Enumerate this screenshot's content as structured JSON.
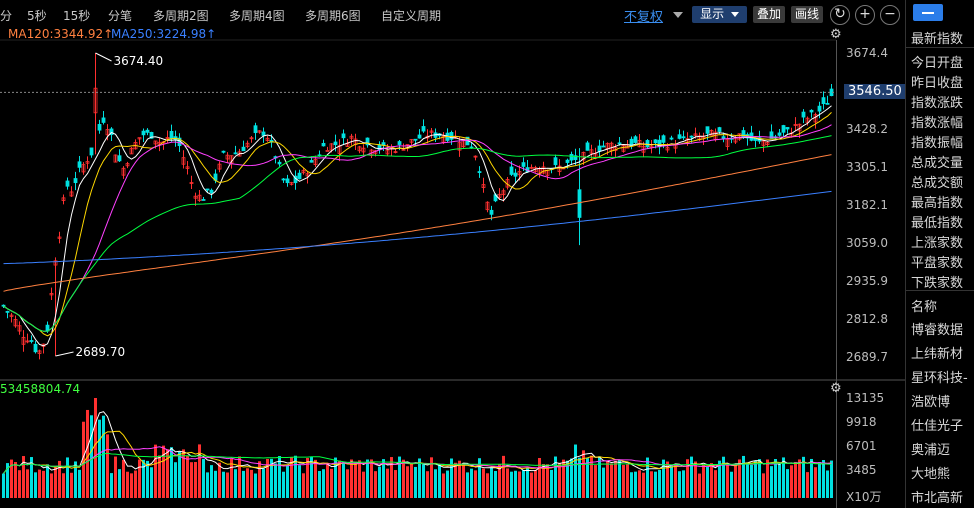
{
  "toolbar": {
    "periods": [
      "分",
      "5秒",
      "15秒",
      "分笔",
      "多周期2图",
      "多周期4图",
      "多周期6图",
      "自定义周期"
    ],
    "adjust": "不复权",
    "display": "显示",
    "overlay": "叠加",
    "draw": "画线",
    "refresh_icon": "refresh-icon",
    "zoom_in": "+",
    "zoom_out": "−"
  },
  "indicators": {
    "ma120": "MA120:3344.92↑",
    "ma250": "MA250:3224.98↑",
    "volume": "53458804.74"
  },
  "price_axis": {
    "ticks": [
      "3674.4",
      "3546.50",
      "3428.2",
      "3305.1",
      "3182.1",
      "3059.0",
      "2935.9",
      "2812.8",
      "2689.7"
    ],
    "current": "3546.50"
  },
  "volume_axis": {
    "ticks": [
      "13135",
      "9918",
      "6701",
      "3485"
    ],
    "unit": "X10万"
  },
  "annotations": {
    "high": "3674.40",
    "low": "2689.70"
  },
  "sidebar": {
    "items": [
      "最新指数",
      "今日开盘",
      "昨日收盘",
      "指数涨跌",
      "指数涨幅",
      "指数振幅",
      "总成交量",
      "总成交额",
      "最高指数",
      "最低指数",
      "上涨家数",
      "平盘家数",
      "下跌家数"
    ],
    "list_header": "名称",
    "stocks": [
      "博睿数据",
      "上纬新材",
      "星环科技-",
      "浩欧博",
      "仕佳光子",
      "奥浦迈",
      "大地熊",
      "市北高新"
    ]
  },
  "chart_data": {
    "type": "candlestick",
    "y_range": [
      2689.7,
      3674.4
    ],
    "high": 3674.4,
    "low": 2689.7,
    "last": 3546.5,
    "ma120_last": 3344.92,
    "ma250_last": 3224.98,
    "volume_range": [
      0,
      13135
    ],
    "colors": {
      "up": "#ff3030",
      "down": "#00e0e0",
      "ma5": "#ffffff",
      "ma10": "#ffd800",
      "ma20": "#ff40ff",
      "ma60": "#00ff40",
      "ma120": "#ff8040",
      "ma250": "#3a80ff"
    }
  }
}
